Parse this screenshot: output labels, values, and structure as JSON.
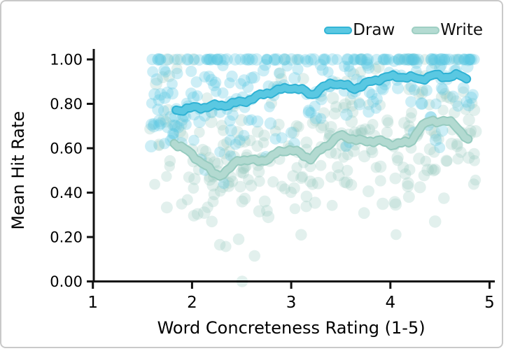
{
  "figure": {
    "background": "#ffffff",
    "border_color": "#c9c9c9",
    "axis_color": "#111111"
  },
  "legend": {
    "position": "top-right",
    "items": [
      {
        "label": "Draw",
        "color": "#5ac8e2",
        "edge": "#33b5d6",
        "marker": "rounded-line"
      },
      {
        "label": "Write",
        "color": "#b4dbd2",
        "edge": "#9fcfc3",
        "marker": "rounded-line"
      }
    ]
  },
  "chart_data": {
    "type": "scatter",
    "title": "",
    "xlabel": "Word Concreteness Rating (1-5)",
    "ylabel": "Mean Hit Rate",
    "xlim": [
      1,
      5
    ],
    "ylim": [
      0.0,
      1.0
    ],
    "x_ticks": [
      "1",
      "2",
      "3",
      "4",
      "5"
    ],
    "y_ticks": [
      "0.00",
      "0.20",
      "0.40",
      "0.60",
      "0.80",
      "1.00"
    ],
    "grid": false,
    "legend_position": "top-right",
    "series": [
      {
        "name": "Draw",
        "kind": "moving-average-line",
        "color": "#5ac8e2",
        "edge": "#2fb2d4",
        "x": [
          1.84,
          1.94,
          2.05,
          2.19,
          2.33,
          2.47,
          2.61,
          2.75,
          2.89,
          3.0,
          3.1,
          3.21,
          3.32,
          3.42,
          3.53,
          3.63,
          3.74,
          3.92,
          4.09,
          4.3,
          4.45,
          4.6,
          4.7,
          4.79
        ],
        "y": [
          0.77,
          0.778,
          0.782,
          0.789,
          0.795,
          0.805,
          0.823,
          0.849,
          0.862,
          0.875,
          0.862,
          0.842,
          0.872,
          0.896,
          0.884,
          0.868,
          0.888,
          0.918,
          0.924,
          0.912,
          0.928,
          0.922,
          0.928,
          0.913
        ]
      },
      {
        "name": "Write",
        "kind": "moving-average-line",
        "color": "#b3dad1",
        "edge": "#96cbbf",
        "x": [
          1.82,
          1.91,
          2.01,
          2.12,
          2.21,
          2.28,
          2.36,
          2.47,
          2.58,
          2.68,
          2.79,
          2.87,
          2.96,
          3.07,
          3.2,
          3.32,
          3.48,
          3.6,
          3.74,
          3.88,
          3.99,
          4.09,
          4.2,
          4.3,
          4.41,
          4.54,
          4.64,
          4.73,
          4.79
        ],
        "y": [
          0.625,
          0.6,
          0.568,
          0.527,
          0.49,
          0.48,
          0.496,
          0.553,
          0.543,
          0.545,
          0.553,
          0.584,
          0.594,
          0.581,
          0.553,
          0.6,
          0.655,
          0.647,
          0.628,
          0.638,
          0.613,
          0.628,
          0.619,
          0.7,
          0.72,
          0.726,
          0.707,
          0.669,
          0.631
        ]
      }
    ],
    "scatter": {
      "note": "per-word hit-rate dots, semi-transparent, jittered around each condition's moving average; many draw words at hit rate 1.00",
      "seed": 42,
      "draw": {
        "count": 295,
        "color": "#58c7e2",
        "opacity": 0.3,
        "x_range": [
          1.57,
          4.86
        ],
        "top_fraction": 0.21,
        "spread": 0.13,
        "floor": 0.3,
        "radius": 8.3
      },
      "write": {
        "count": 295,
        "color": "#93c9bd",
        "opacity": 0.27,
        "x_range": [
          1.57,
          4.86
        ],
        "top_fraction": 0.04,
        "spread": 0.155,
        "floor": 0.0,
        "radius": 8.3
      },
      "write_extra_points": [
        [
          2.505,
          0.0
        ],
        [
          2.28,
          0.165
        ],
        [
          2.47,
          0.19
        ],
        [
          2.63,
          0.115
        ],
        [
          3.1,
          0.21
        ],
        [
          2.2,
          0.27
        ]
      ]
    }
  }
}
